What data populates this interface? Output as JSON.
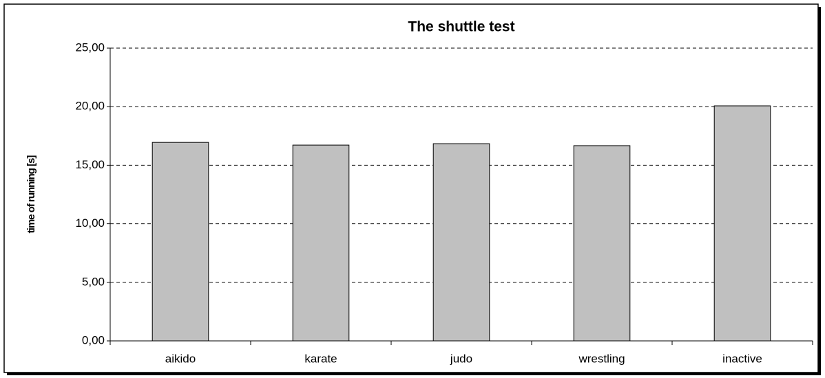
{
  "chart_data": {
    "type": "bar",
    "title": "The shuttle test",
    "y_label": "time of running [s]",
    "categories": [
      "aikido",
      "karate",
      "judo",
      "wrestling",
      "inactive"
    ],
    "values": [
      16.95,
      16.72,
      16.84,
      16.67,
      20.07
    ],
    "color": "#c0c0c0",
    "ylim": [
      0,
      25
    ],
    "yticks": [
      {
        "value": 0,
        "label": "0,00"
      },
      {
        "value": 5,
        "label": "5,00"
      },
      {
        "value": 10,
        "label": "10,00"
      },
      {
        "value": 15,
        "label": "15,00"
      },
      {
        "value": 20,
        "label": "20,00"
      },
      {
        "value": 25,
        "label": "25,00"
      }
    ],
    "grid": true
  }
}
